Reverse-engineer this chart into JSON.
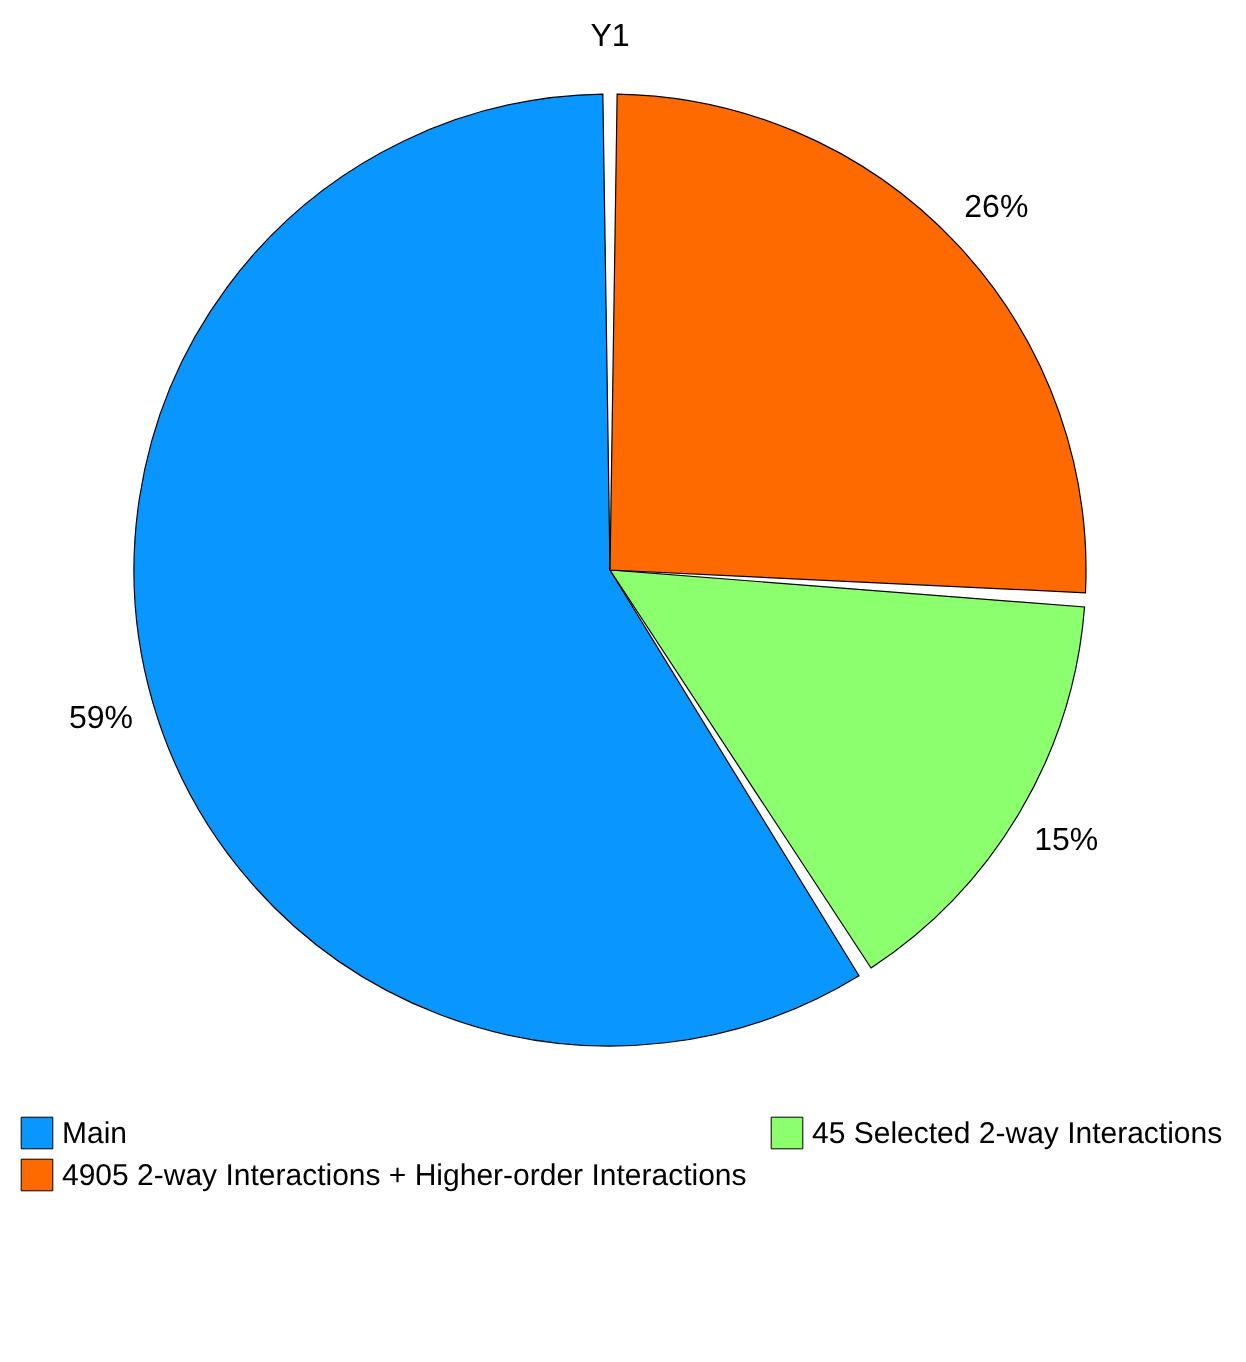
{
  "chart_data": {
    "type": "pie",
    "title": "Y1",
    "categories": [
      "Main",
      "45 Selected 2-way Interactions",
      "4905 2-way Interactions + Higher-order Interactions"
    ],
    "values": [
      59,
      15,
      26
    ],
    "colors": [
      "#0a96ff",
      "#8cff6e",
      "#ff6a00"
    ],
    "value_labels": [
      "59%",
      "15%",
      "26%"
    ],
    "legend": "bottom"
  }
}
